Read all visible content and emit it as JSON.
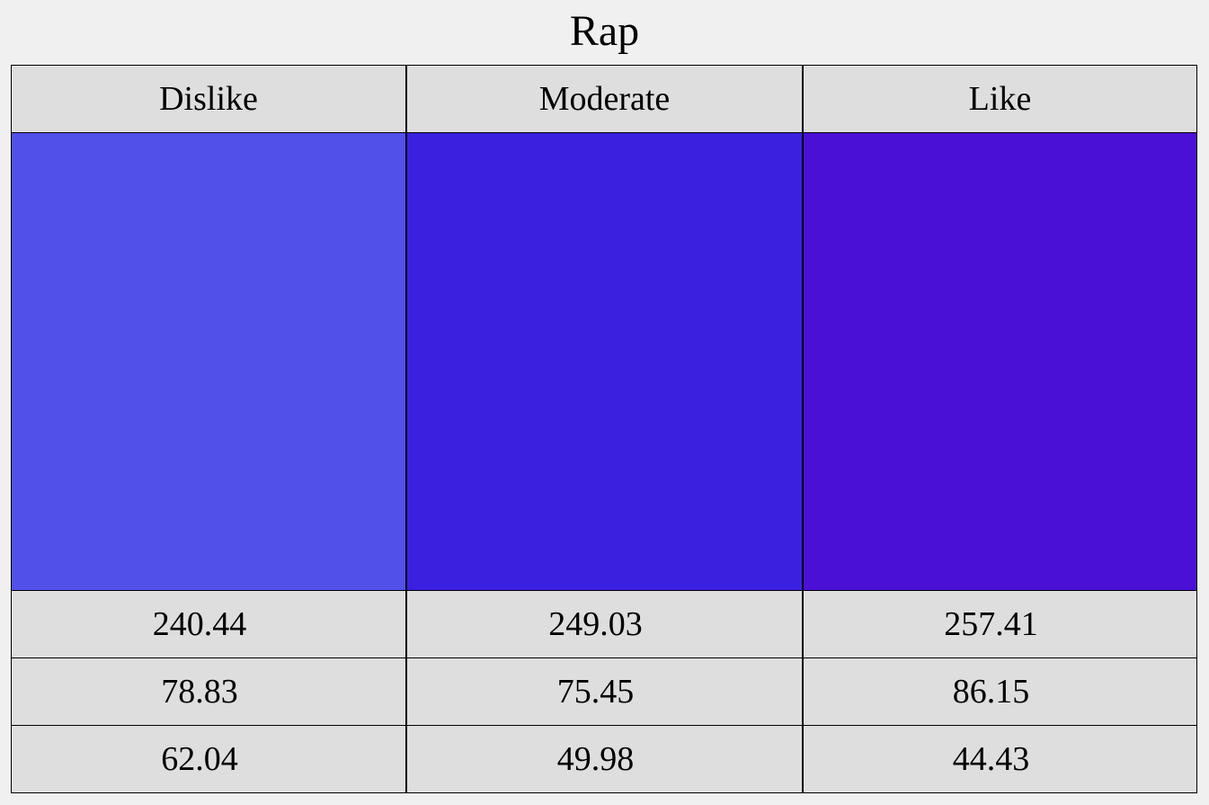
{
  "title": "Rap",
  "columns": [
    {
      "label": "Dislike",
      "swatch_color": "#5151ea",
      "values": [
        "240.44",
        "78.83",
        "62.04"
      ]
    },
    {
      "label": "Moderate",
      "swatch_color": "#3c20e0",
      "values": [
        "249.03",
        "75.45",
        "49.98"
      ]
    },
    {
      "label": "Like",
      "swatch_color": "#4b10d6",
      "values": [
        "257.41",
        "86.15",
        "44.43"
      ]
    }
  ]
}
